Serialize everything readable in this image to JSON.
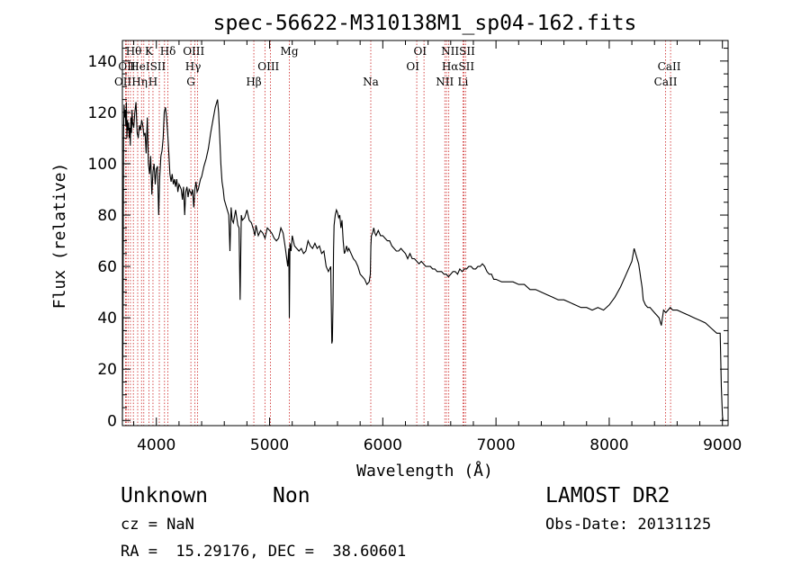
{
  "chart_data": {
    "type": "line",
    "title": "spec-56622-M310138M1_sp04-162.fits",
    "xlabel": "Wavelength (Å)",
    "ylabel": "Flux (relative)",
    "xlim": [
      3700,
      9050
    ],
    "ylim": [
      -2,
      148
    ],
    "x_ticks": [
      4000,
      5000,
      6000,
      7000,
      8000,
      9000
    ],
    "x_tick_labels": [
      "4000",
      "5000",
      "6000",
      "7000",
      "8000",
      "9000"
    ],
    "y_ticks": [
      0,
      20,
      40,
      60,
      80,
      100,
      120,
      140
    ],
    "y_tick_labels": [
      "0",
      "20",
      "40",
      "60",
      "80",
      "100",
      "120",
      "140"
    ],
    "grid": false,
    "line_color": "#000000",
    "marker_color": "#cc2222",
    "series": [
      {
        "x": [
          3700,
          3705,
          3710,
          3715,
          3720,
          3725,
          3730,
          3735,
          3740,
          3745,
          3750,
          3755,
          3760,
          3765,
          3770,
          3775,
          3780,
          3785,
          3790,
          3800,
          3810,
          3820,
          3830,
          3840,
          3850,
          3860,
          3870,
          3880,
          3890,
          3900,
          3910,
          3920,
          3930,
          3940,
          3950,
          3960,
          3970,
          3980,
          3990,
          4000,
          4010,
          4020,
          4030,
          4040,
          4050,
          4060,
          4070,
          4080,
          4090,
          4100,
          4110,
          4120,
          4130,
          4140,
          4150,
          4160,
          4170,
          4180,
          4190,
          4200,
          4210,
          4220,
          4230,
          4240,
          4250,
          4260,
          4270,
          4280,
          4290,
          4300,
          4310,
          4320,
          4330,
          4340,
          4350,
          4360,
          4370,
          4380,
          4390,
          4400,
          4420,
          4440,
          4460,
          4480,
          4500,
          4520,
          4540,
          4550,
          4560,
          4570,
          4580,
          4590,
          4600,
          4620,
          4640,
          4650,
          4660,
          4670,
          4680,
          4700,
          4720,
          4730,
          4740,
          4750,
          4760,
          4780,
          4800,
          4820,
          4840,
          4860,
          4870,
          4880,
          4900,
          4920,
          4940,
          4960,
          4980,
          5000,
          5020,
          5040,
          5060,
          5080,
          5100,
          5120,
          5140,
          5160,
          5170,
          5175,
          5180,
          5190,
          5200,
          5220,
          5240,
          5260,
          5280,
          5300,
          5320,
          5340,
          5360,
          5380,
          5400,
          5420,
          5440,
          5460,
          5480,
          5500,
          5520,
          5540,
          5550,
          5555,
          5560,
          5565,
          5570,
          5580,
          5590,
          5600,
          5610,
          5620,
          5630,
          5640,
          5650,
          5660,
          5670,
          5680,
          5690,
          5700,
          5720,
          5740,
          5760,
          5780,
          5800,
          5820,
          5840,
          5860,
          5880,
          5890,
          5895,
          5900,
          5910,
          5920,
          5930,
          5940,
          5950,
          5960,
          5980,
          6000,
          6020,
          6040,
          6060,
          6080,
          6100,
          6120,
          6140,
          6160,
          6180,
          6200,
          6220,
          6240,
          6260,
          6280,
          6300,
          6320,
          6340,
          6360,
          6380,
          6400,
          6420,
          6440,
          6460,
          6480,
          6500,
          6520,
          6540,
          6560,
          6580,
          6600,
          6620,
          6640,
          6660,
          6680,
          6700,
          6720,
          6740,
          6760,
          6780,
          6800,
          6820,
          6840,
          6860,
          6880,
          6900,
          6920,
          6940,
          6960,
          6980,
          7000,
          7050,
          7100,
          7150,
          7200,
          7250,
          7300,
          7350,
          7400,
          7450,
          7500,
          7550,
          7600,
          7650,
          7700,
          7750,
          7800,
          7850,
          7900,
          7950,
          8000,
          8050,
          8100,
          8150,
          8200,
          8220,
          8240,
          8260,
          8270,
          8280,
          8290,
          8300,
          8320,
          8340,
          8360,
          8380,
          8400,
          8420,
          8440,
          8460,
          8480,
          8500,
          8520,
          8540,
          8560,
          8600,
          8650,
          8700,
          8750,
          8800,
          8850,
          8900,
          8950,
          8980,
          8990,
          9000,
          9005
        ],
        "y": [
          0,
          30,
          112,
          123,
          118,
          121,
          115,
          124,
          110,
          117,
          113,
          116,
          110,
          114,
          107,
          118,
          112,
          121,
          116,
          114,
          120,
          124,
          112,
          110,
          115,
          113,
          117,
          115,
          111,
          112,
          104,
          118,
          100,
          96,
          103,
          88,
          97,
          100,
          92,
          98,
          99,
          80,
          95,
          103,
          105,
          110,
          120,
          122,
          118,
          112,
          104,
          96,
          93,
          96,
          92,
          94,
          91,
          94,
          89,
          92,
          91,
          90,
          86,
          91,
          80,
          89,
          91,
          87,
          90,
          89,
          88,
          90,
          83,
          90,
          93,
          89,
          90,
          92,
          94,
          95,
          99,
          102,
          106,
          112,
          117,
          122,
          125,
          120,
          110,
          100,
          93,
          90,
          86,
          83,
          80,
          66,
          83,
          78,
          77,
          82,
          76,
          75,
          47,
          80,
          78,
          79,
          82,
          78,
          77,
          74,
          72,
          76,
          72,
          74,
          73,
          71,
          75,
          74,
          73,
          71,
          70,
          71,
          75,
          73,
          67,
          60,
          67,
          40,
          69,
          66,
          72,
          68,
          67,
          66,
          67,
          65,
          66,
          70,
          68,
          67,
          69,
          67,
          68,
          65,
          66,
          60,
          58,
          60,
          30,
          31,
          45,
          66,
          76,
          80,
          82,
          81,
          79,
          80,
          75,
          78,
          70,
          65,
          66,
          68,
          66,
          67,
          65,
          63,
          62,
          60,
          57,
          56,
          55,
          53,
          54,
          57,
          68,
          72,
          73,
          75,
          73,
          72,
          73,
          74,
          72,
          72,
          71,
          70,
          70,
          68,
          67,
          66,
          66,
          67,
          66,
          65,
          63,
          65,
          63,
          63,
          62,
          61,
          62,
          61,
          60,
          60,
          60,
          59,
          59,
          58,
          58,
          58,
          57,
          57,
          56,
          57,
          58,
          58,
          57,
          59,
          58,
          59,
          59,
          60,
          60,
          59,
          59,
          60,
          60,
          61,
          60,
          58,
          57,
          57,
          55,
          55,
          54,
          54,
          54,
          53,
          53,
          51,
          51,
          50,
          49,
          48,
          47,
          47,
          46,
          45,
          44,
          44,
          43,
          44,
          43,
          45,
          48,
          52,
          57,
          62,
          67,
          64,
          61,
          58,
          55,
          52,
          47,
          45,
          44,
          44,
          43,
          42,
          41,
          40,
          37,
          43,
          42,
          43,
          44,
          43,
          43,
          42,
          41,
          40,
          39,
          38,
          36,
          34,
          34,
          13,
          2,
          0
        ]
      }
    ],
    "lines": [
      {
        "wl": 3727,
        "name": "OII"
      },
      {
        "wl": 3734,
        "name": "OII"
      },
      {
        "wl": 3750,
        "name": ""
      },
      {
        "wl": 3771,
        "name": ""
      },
      {
        "wl": 3797,
        "name": ""
      },
      {
        "wl": 3835,
        "name": ""
      },
      {
        "wl": 3869,
        "name": ""
      },
      {
        "wl": 3889,
        "name": ""
      },
      {
        "wl": 3934,
        "name": "K"
      },
      {
        "wl": 3970,
        "name": "H"
      },
      {
        "wl": 4026,
        "name": "HeI"
      },
      {
        "wl": 4072,
        "name": "SII"
      },
      {
        "wl": 4102,
        "name": "Hδ"
      },
      {
        "wl": 4305,
        "name": "G"
      },
      {
        "wl": 4341,
        "name": "Hγ"
      },
      {
        "wl": 4363,
        "name": "OIII"
      },
      {
        "wl": 4861,
        "name": "Hβ"
      },
      {
        "wl": 4959,
        "name": "OIII"
      },
      {
        "wl": 5007,
        "name": ""
      },
      {
        "wl": 5175,
        "name": "Mg"
      },
      {
        "wl": 5894,
        "name": "Na"
      },
      {
        "wl": 6300,
        "name": "OI"
      },
      {
        "wl": 6364,
        "name": "OI"
      },
      {
        "wl": 6548,
        "name": "NII"
      },
      {
        "wl": 6563,
        "name": "Hα"
      },
      {
        "wl": 6583,
        "name": "NII"
      },
      {
        "wl": 6708,
        "name": "Li"
      },
      {
        "wl": 6716,
        "name": "SII"
      },
      {
        "wl": 6731,
        "name": "SII"
      },
      {
        "wl": 8498,
        "name": "CaII"
      },
      {
        "wl": 8542,
        "name": "CaII"
      }
    ],
    "line_labels": [
      {
        "text": "Hθ",
        "wl": 3800,
        "row": 1
      },
      {
        "text": "K",
        "wl": 3934,
        "row": 1
      },
      {
        "text": "Hδ",
        "wl": 4102,
        "row": 1
      },
      {
        "text": "OIII",
        "wl": 4330,
        "row": 1
      },
      {
        "text": "Mg",
        "wl": 5175,
        "row": 1
      },
      {
        "text": "OI",
        "wl": 6330,
        "row": 1
      },
      {
        "text": "NIISII",
        "wl": 6665,
        "row": 1
      },
      {
        "text": "OII",
        "wl": 3740,
        "row": 2
      },
      {
        "text": "HeISII",
        "wl": 3925,
        "row": 2
      },
      {
        "text": "Hγ",
        "wl": 4325,
        "row": 2
      },
      {
        "text": "OIII",
        "wl": 4990,
        "row": 2
      },
      {
        "text": "OI",
        "wl": 6265,
        "row": 2
      },
      {
        "text": "HαSII",
        "wl": 6665,
        "row": 2
      },
      {
        "text": "CaII",
        "wl": 8530,
        "row": 2
      },
      {
        "text": "OIIHη",
        "wl": 3775,
        "row": 3
      },
      {
        "text": "H",
        "wl": 3970,
        "row": 3
      },
      {
        "text": "G",
        "wl": 4305,
        "row": 3
      },
      {
        "text": "Hβ",
        "wl": 4861,
        "row": 3
      },
      {
        "text": "Na",
        "wl": 5894,
        "row": 3
      },
      {
        "text": "NII",
        "wl": 6548,
        "row": 3
      },
      {
        "text": "Li",
        "wl": 6708,
        "row": 3
      },
      {
        "text": "CaII",
        "wl": 8498,
        "row": 3
      }
    ]
  },
  "info": {
    "object_class": "Unknown",
    "object_subclass": "Non",
    "survey": "LAMOST DR2",
    "redshift": "cz = NaN",
    "obs_date": "Obs-Date: 20131125",
    "coords": "RA =  15.29176, DEC =  38.60601"
  }
}
